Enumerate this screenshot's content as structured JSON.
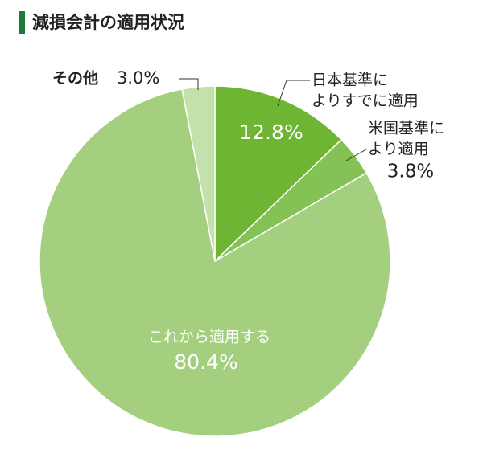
{
  "chart_data": {
    "type": "pie",
    "title": "減損会計の適用状況",
    "categories": [
      [
        "日本基準に",
        "よりすでに適用"
      ],
      [
        "米国基準に",
        "より適用"
      ],
      [
        "これから適用する"
      ],
      [
        "その他"
      ]
    ],
    "values": [
      12.8,
      3.8,
      80.4,
      3.0
    ],
    "value_labels": [
      "12.8%",
      "3.8%",
      "80.4%",
      "3.0%"
    ],
    "colors": [
      "#6db532",
      "#84c256",
      "#a4cf7f",
      "#c3e1aa"
    ]
  }
}
